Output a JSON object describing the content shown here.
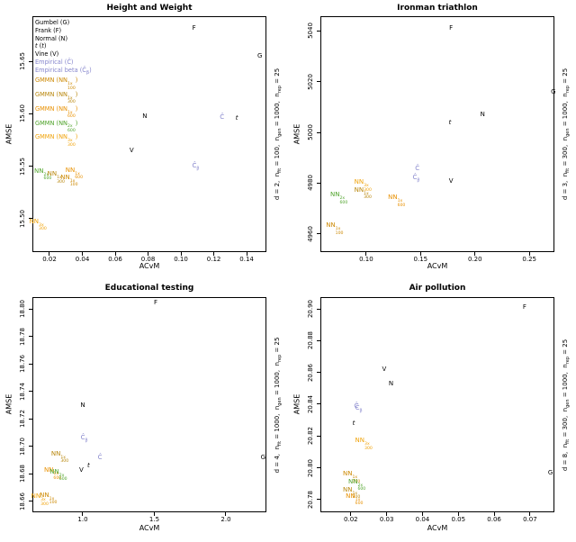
{
  "palette": {
    "black": "#000000",
    "empirical_blue": "#8585CC",
    "gmmn_1x_100": "#CC8800",
    "gmmn_1x_300": "#B8860B",
    "gmmn_1x_600": "#E89000",
    "gmmn_2x_600": "#4FA32A",
    "gmmn_3x_300": "#F0A30A"
  },
  "legend_items": [
    {
      "color": "black",
      "segs": [
        {
          "t": "Gumbel (G)"
        }
      ]
    },
    {
      "color": "black",
      "segs": [
        {
          "t": "Frank (F)"
        }
      ]
    },
    {
      "color": "black",
      "segs": [
        {
          "t": "Normal (N)"
        }
      ]
    },
    {
      "color": "black",
      "segs": [
        {
          "t": "t",
          "i": true
        },
        {
          "t": " ("
        },
        {
          "t": "t",
          "i": true
        },
        {
          "t": ")"
        }
      ]
    },
    {
      "color": "black",
      "segs": [
        {
          "t": "Vine (V)"
        }
      ]
    },
    {
      "color": "empirical_blue",
      "segs": [
        {
          "t": "Empirical (Ĉ)"
        }
      ]
    },
    {
      "color": "empirical_blue",
      "segs": [
        {
          "t": "Empirical beta (Ĉ"
        },
        {
          "t": "β",
          "sub": true
        },
        {
          "t": ")"
        }
      ]
    },
    {
      "color": "gmmn_1x_100",
      "segs": [
        {
          "t": "GMMN (NN"
        },
        {
          "stack": [
            "1x",
            "100"
          ]
        },
        {
          "t": ")"
        }
      ]
    },
    {
      "color": "gmmn_1x_300",
      "segs": [
        {
          "t": "GMMN (NN"
        },
        {
          "stack": [
            "1x",
            "300"
          ]
        },
        {
          "t": ")"
        }
      ]
    },
    {
      "color": "gmmn_1x_600",
      "segs": [
        {
          "t": "GMMN (NN"
        },
        {
          "stack": [
            "1x",
            "600"
          ]
        },
        {
          "t": ")"
        }
      ]
    },
    {
      "color": "gmmn_2x_600",
      "segs": [
        {
          "t": "GMMN (NN"
        },
        {
          "stack": [
            "2x",
            "600"
          ]
        },
        {
          "t": ")"
        }
      ]
    },
    {
      "color": "gmmn_3x_300",
      "segs": [
        {
          "t": "GMMN (NN"
        },
        {
          "stack": [
            "3x",
            "300"
          ]
        },
        {
          "t": ")"
        }
      ]
    }
  ],
  "chart_data": [
    {
      "type": "labeled-scatter",
      "title": "Height and Weight",
      "xlabel": "ACvM",
      "ylabel": "AMSE",
      "right_label": [
        {
          "t": "d = 2,  n"
        },
        {
          "t": "fit",
          "sub": true
        },
        {
          "t": " = 100,  n"
        },
        {
          "t": "gen",
          "sub": true
        },
        {
          "t": " = 1000,  n"
        },
        {
          "t": "rep",
          "sub": true
        },
        {
          "t": " = 25"
        }
      ],
      "xlim": [
        0.0096,
        0.152
      ],
      "ylim": [
        15.468,
        15.693
      ],
      "xticks": [
        0.02,
        0.04,
        0.06,
        0.08,
        0.1,
        0.12,
        0.14
      ],
      "xtick_labels": [
        "0.02",
        "0.04",
        "0.06",
        "0.08",
        "0.10",
        "0.12",
        "0.14"
      ],
      "yticks": [
        15.5,
        15.55,
        15.6,
        15.65
      ],
      "ytick_labels": [
        "15.50",
        "15.55",
        "15.60",
        "15.65"
      ],
      "has_legend": true,
      "points": [
        {
          "base": "F",
          "x": 0.108,
          "y": 15.682,
          "color": "black"
        },
        {
          "base": "G",
          "x": 0.148,
          "y": 15.655,
          "color": "black"
        },
        {
          "base": "N",
          "x": 0.078,
          "y": 15.598,
          "color": "black"
        },
        {
          "base": "t",
          "i": true,
          "x": 0.134,
          "y": 15.596,
          "color": "black"
        },
        {
          "base": "Ĉ",
          "x": 0.125,
          "y": 15.597,
          "color": "empirical_blue"
        },
        {
          "base": "V",
          "x": 0.07,
          "y": 15.565,
          "color": "black"
        },
        {
          "base": "Ĉ",
          "bsub": "β",
          "x": 0.109,
          "y": 15.55,
          "color": "empirical_blue"
        },
        {
          "base": "NN",
          "stack": [
            "2x",
            "600"
          ],
          "x": 0.016,
          "y": 15.542,
          "color": "gmmn_2x_600"
        },
        {
          "base": "NN",
          "stack": [
            "1x",
            "300"
          ],
          "x": 0.024,
          "y": 15.539,
          "color": "gmmn_1x_300"
        },
        {
          "base": "NN",
          "stack": [
            "1x",
            "600"
          ],
          "x": 0.035,
          "y": 15.543,
          "color": "gmmn_1x_600"
        },
        {
          "base": "NN",
          "stack": [
            "1x",
            "100"
          ],
          "x": 0.032,
          "y": 15.536,
          "color": "gmmn_1x_100"
        },
        {
          "base": "NN",
          "stack": [
            "3x",
            "300"
          ],
          "x": 0.013,
          "y": 15.494,
          "color": "gmmn_3x_300"
        }
      ]
    },
    {
      "type": "labeled-scatter",
      "title": "Ironman triathlon",
      "xlabel": "ACvM",
      "ylabel": "AMSE",
      "right_label": [
        {
          "t": "d = 3,  n"
        },
        {
          "t": "fit",
          "sub": true
        },
        {
          "t": " = 300,  n"
        },
        {
          "t": "gen",
          "sub": true
        },
        {
          "t": " = 1000,  n"
        },
        {
          "t": "rep",
          "sub": true
        },
        {
          "t": " = 25"
        }
      ],
      "xlim": [
        0.0579,
        0.273
      ],
      "ylim": [
        4952.9,
        5045.7
      ],
      "xticks": [
        0.1,
        0.15,
        0.2,
        0.25
      ],
      "xtick_labels": [
        "0.10",
        "0.15",
        "0.20",
        "0.25"
      ],
      "yticks": [
        4960,
        4980,
        5000,
        5020,
        5040
      ],
      "ytick_labels": [
        "4960",
        "4980",
        "5000",
        "5020",
        "5040"
      ],
      "has_legend": false,
      "points": [
        {
          "base": "F",
          "x": 0.178,
          "y": 5041,
          "color": "black"
        },
        {
          "base": "G",
          "x": 0.272,
          "y": 5016,
          "color": "black"
        },
        {
          "base": "N",
          "x": 0.207,
          "y": 5007,
          "color": "black"
        },
        {
          "base": "t",
          "i": true,
          "x": 0.177,
          "y": 5004,
          "color": "black"
        },
        {
          "base": "Ĉ",
          "x": 0.147,
          "y": 4986,
          "color": "empirical_blue"
        },
        {
          "base": "Ĉ",
          "bsub": "β",
          "x": 0.146,
          "y": 4982,
          "color": "empirical_blue"
        },
        {
          "base": "V",
          "x": 0.178,
          "y": 4981,
          "color": "black"
        },
        {
          "base": "NN",
          "stack": [
            "3x",
            "300"
          ],
          "x": 0.097,
          "y": 4979,
          "color": "gmmn_3x_300"
        },
        {
          "base": "NN",
          "stack": [
            "1x",
            "300"
          ],
          "x": 0.097,
          "y": 4976,
          "color": "gmmn_1x_300"
        },
        {
          "base": "NN",
          "stack": [
            "2x",
            "600"
          ],
          "x": 0.075,
          "y": 4974,
          "color": "gmmn_2x_600"
        },
        {
          "base": "NN",
          "stack": [
            "1x",
            "600"
          ],
          "x": 0.128,
          "y": 4973,
          "color": "gmmn_1x_600"
        },
        {
          "base": "NN",
          "stack": [
            "1x",
            "100"
          ],
          "x": 0.071,
          "y": 4962,
          "color": "gmmn_1x_100"
        }
      ]
    },
    {
      "type": "labeled-scatter",
      "title": "Educational testing",
      "xlabel": "ACvM",
      "ylabel": "AMSE",
      "right_label": [
        {
          "t": "d = 4,  n"
        },
        {
          "t": "fit",
          "sub": true
        },
        {
          "t": " = 1000,  n"
        },
        {
          "t": "gen",
          "sub": true
        },
        {
          "t": " = 1000,  n"
        },
        {
          "t": "rep",
          "sub": true
        },
        {
          "t": " = 25"
        }
      ],
      "xlim": [
        0.648,
        2.283
      ],
      "ylim": [
        18.652,
        18.8087
      ],
      "xticks": [
        1.0,
        1.5,
        2.0
      ],
      "xtick_labels": [
        "1.0",
        "1.5",
        "2.0"
      ],
      "yticks": [
        18.66,
        18.68,
        18.7,
        18.72,
        18.74,
        18.76,
        18.78,
        18.8
      ],
      "ytick_labels": [
        "18.66",
        "18.68",
        "18.70",
        "18.72",
        "18.74",
        "18.76",
        "18.78",
        "18.80"
      ],
      "has_legend": false,
      "points": [
        {
          "base": "F",
          "x": 1.51,
          "y": 18.805,
          "color": "black"
        },
        {
          "base": "N",
          "x": 1.0,
          "y": 18.73,
          "color": "black"
        },
        {
          "base": "Ĉ",
          "bsub": "β",
          "x": 1.01,
          "y": 18.706,
          "color": "empirical_blue"
        },
        {
          "base": "Ĉ",
          "x": 1.12,
          "y": 18.692,
          "color": "empirical_blue"
        },
        {
          "base": "G",
          "x": 2.26,
          "y": 18.692,
          "color": "black"
        },
        {
          "base": "NN",
          "stack": [
            "1x",
            "300"
          ],
          "x": 0.84,
          "y": 18.692,
          "color": "gmmn_1x_300"
        },
        {
          "base": "t",
          "i": true,
          "x": 1.04,
          "y": 18.686,
          "color": "black"
        },
        {
          "base": "V",
          "x": 0.99,
          "y": 18.683,
          "color": "black"
        },
        {
          "base": "NN",
          "stack": [
            "1x",
            "600"
          ],
          "x": 0.79,
          "y": 18.68,
          "color": "gmmn_1x_600"
        },
        {
          "base": "NN",
          "stack": [
            "2x",
            "600"
          ],
          "x": 0.83,
          "y": 18.679,
          "color": "gmmn_2x_600"
        },
        {
          "base": "NN",
          "stack": [
            "1x",
            "100"
          ],
          "x": 0.76,
          "y": 18.662,
          "color": "gmmn_1x_100"
        },
        {
          "base": "NN",
          "stack": [
            "3x",
            "300"
          ],
          "x": 0.7,
          "y": 18.661,
          "color": "gmmn_3x_300"
        }
      ]
    },
    {
      "type": "labeled-scatter",
      "title": "Air pollution",
      "xlabel": "ACvM",
      "ylabel": "AMSE",
      "right_label": [
        {
          "t": "d = 8,  n"
        },
        {
          "t": "fit",
          "sub": true
        },
        {
          "t": " = 300,  n"
        },
        {
          "t": "gen",
          "sub": true
        },
        {
          "t": " = 1000,  n"
        },
        {
          "t": "rep",
          "sub": true
        },
        {
          "t": " = 25"
        }
      ],
      "xlim": [
        0.0115,
        0.0768
      ],
      "ylim": [
        20.772,
        20.9074
      ],
      "xticks": [
        0.02,
        0.03,
        0.04,
        0.05,
        0.06,
        0.07
      ],
      "xtick_labels": [
        "0.02",
        "0.03",
        "0.04",
        "0.05",
        "0.06",
        "0.07"
      ],
      "yticks": [
        20.78,
        20.8,
        20.82,
        20.84,
        20.86,
        20.88,
        20.9
      ],
      "ytick_labels": [
        "20.78",
        "20.80",
        "20.82",
        "20.84",
        "20.86",
        "20.88",
        "20.90"
      ],
      "has_legend": false,
      "points": [
        {
          "base": "F",
          "x": 0.0685,
          "y": 20.901,
          "color": "black"
        },
        {
          "base": "V",
          "x": 0.0293,
          "y": 20.862,
          "color": "black"
        },
        {
          "base": "N",
          "x": 0.0312,
          "y": 20.853,
          "color": "black"
        },
        {
          "base": "Ĉ",
          "x": 0.0215,
          "y": 20.839,
          "color": "empirical_blue"
        },
        {
          "base": "Ĉ",
          "bsub": "β",
          "x": 0.0222,
          "y": 20.837,
          "color": "empirical_blue"
        },
        {
          "base": "t",
          "i": true,
          "x": 0.0208,
          "y": 20.828,
          "color": "black"
        },
        {
          "base": "NN",
          "stack": [
            "3x",
            "300"
          ],
          "x": 0.0236,
          "y": 20.815,
          "color": "gmmn_3x_300"
        },
        {
          "base": "G",
          "x": 0.0757,
          "y": 20.797,
          "color": "black"
        },
        {
          "base": "NN",
          "stack": [
            "1x",
            "100"
          ],
          "x": 0.0202,
          "y": 20.794,
          "color": "gmmn_1x_100"
        },
        {
          "base": "NN",
          "stack": [
            "2x",
            "600"
          ],
          "x": 0.0217,
          "y": 20.789,
          "color": "gmmn_2x_600"
        },
        {
          "base": "NN",
          "stack": [
            "1x",
            "300"
          ],
          "x": 0.0202,
          "y": 20.784,
          "color": "gmmn_1x_300"
        },
        {
          "base": "NN",
          "stack": [
            "1x",
            "600"
          ],
          "x": 0.021,
          "y": 20.78,
          "color": "gmmn_1x_600"
        }
      ]
    }
  ]
}
